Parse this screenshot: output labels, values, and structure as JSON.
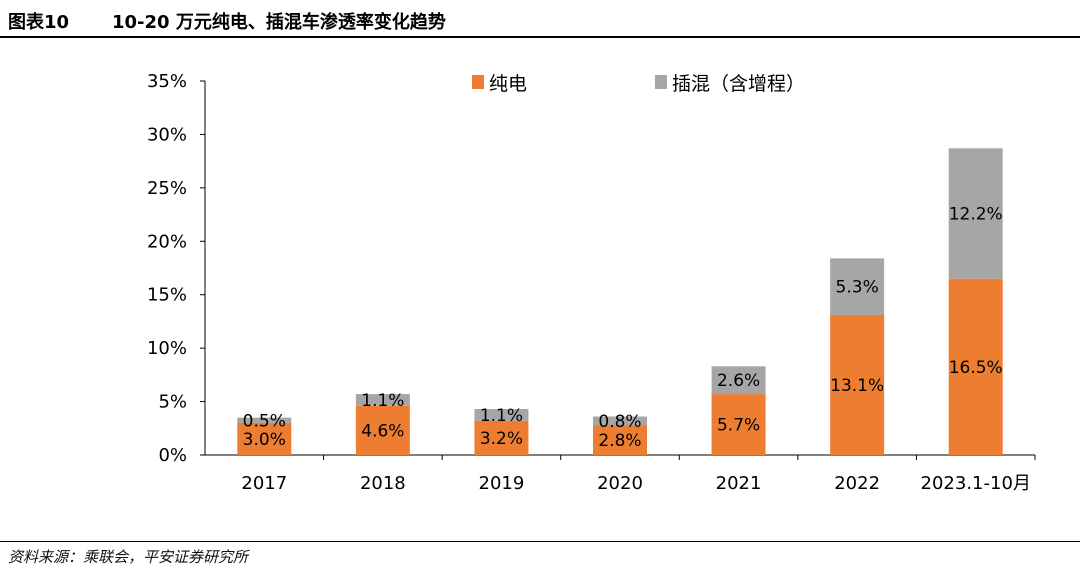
{
  "header": {
    "figure_number": "图表10",
    "title": "10-20 万元纯电、插混车渗透率变化趋势"
  },
  "source": "资料来源：乘联会，平安证券研究所",
  "colors": {
    "bev": "#ED7D31",
    "phev": "#A6A6A6"
  },
  "chart_data": {
    "type": "bar",
    "stacked": true,
    "title": "10-20 万元纯电、插混车渗透率变化趋势",
    "categories": [
      "2017",
      "2018",
      "2019",
      "2020",
      "2021",
      "2022",
      "2023.1-10月"
    ],
    "series": [
      {
        "name": "纯电",
        "values": [
          3.0,
          4.6,
          3.2,
          2.8,
          5.7,
          13.1,
          16.5
        ],
        "labels": [
          "3.0%",
          "4.6%",
          "3.2%",
          "2.8%",
          "5.7%",
          "13.1%",
          "16.5%"
        ]
      },
      {
        "name": "插混（含增程）",
        "values": [
          0.5,
          1.1,
          1.1,
          0.8,
          2.6,
          5.3,
          12.2
        ],
        "labels": [
          "0.5%",
          "1.1%",
          "1.1%",
          "0.8%",
          "2.6%",
          "5.3%",
          "12.2%"
        ]
      }
    ],
    "ylim": [
      0,
      35
    ],
    "yticks": [
      "0%",
      "5%",
      "10%",
      "15%",
      "20%",
      "25%",
      "30%",
      "35%"
    ],
    "xlabel": "",
    "ylabel": "",
    "legend_position": "top",
    "grid": false
  }
}
